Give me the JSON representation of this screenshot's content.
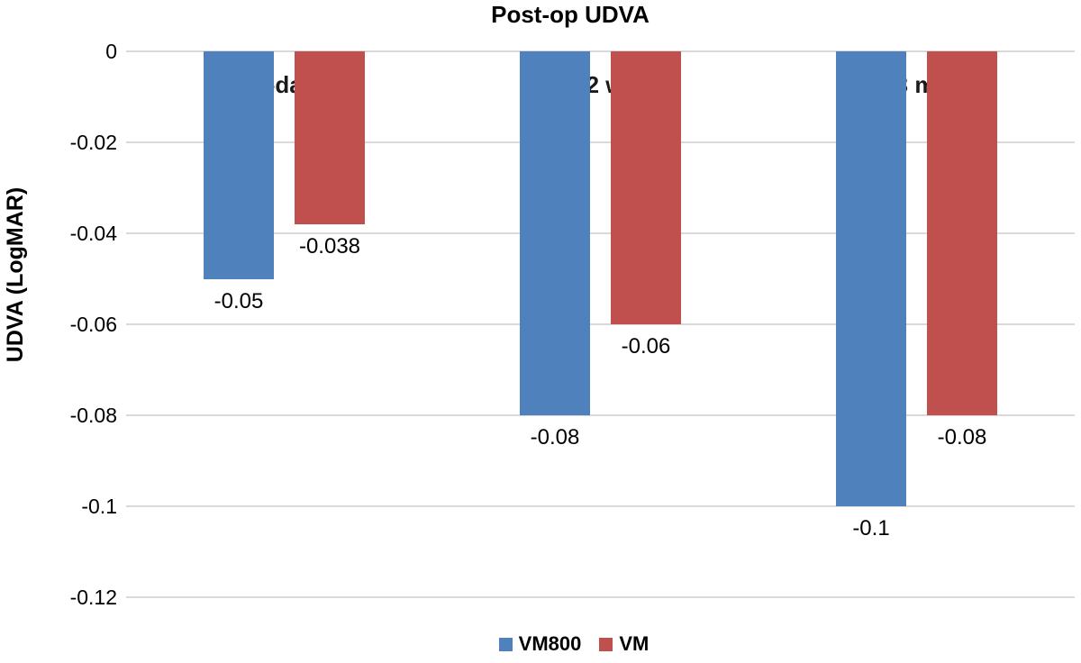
{
  "chart_data": {
    "type": "bar",
    "title": "Post-op UDVA",
    "xlabel": "",
    "ylabel": "UDVA (LogMAR)",
    "categories": [
      "PO-day 1",
      "PO- 2 week",
      "PO- 3 month"
    ],
    "series": [
      {
        "name": "VM800",
        "color": "#4F81BD",
        "values": [
          -0.05,
          -0.08,
          -0.1
        ],
        "value_labels": [
          "-0.05",
          "-0.08",
          "-0.1"
        ]
      },
      {
        "name": "VM",
        "color": "#C0504D",
        "values": [
          -0.038,
          -0.06,
          -0.08
        ],
        "value_labels": [
          "-0.038",
          "-0.06",
          "-0.08"
        ]
      }
    ],
    "ylim": [
      -0.12,
      0
    ],
    "yticks": [
      0,
      -0.02,
      -0.04,
      -0.06,
      -0.08,
      -0.1,
      -0.12
    ],
    "ytick_labels": [
      "0",
      "-0.02",
      "-0.04",
      "-0.06",
      "-0.08",
      "-0.1",
      "-0.12"
    ],
    "grid": true,
    "gridline_color": "#D9D9D9",
    "legend_position": "bottom"
  }
}
